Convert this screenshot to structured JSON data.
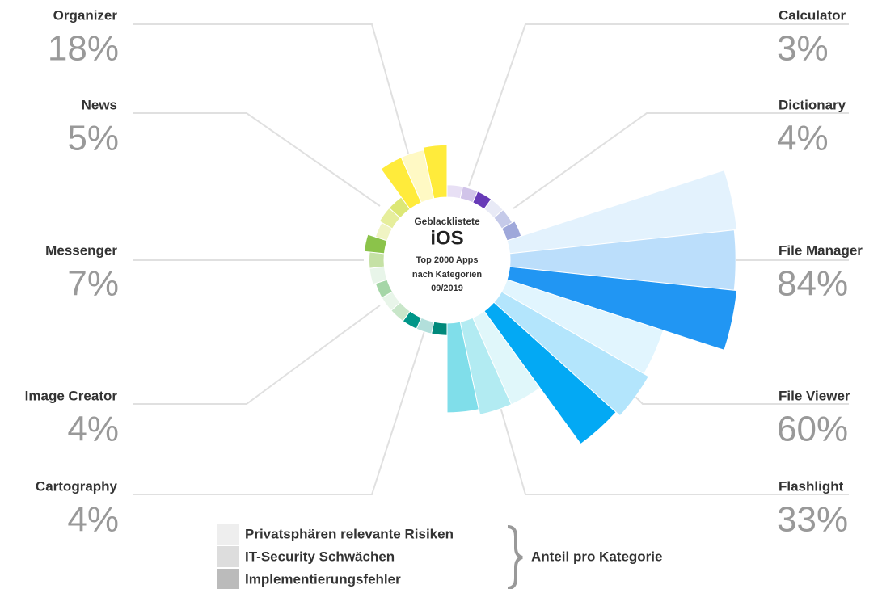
{
  "chart_data": {
    "type": "polar",
    "center_text": [
      "Geblacklistete",
      "iOS",
      "Top 2000 Apps",
      "nach Kategorien",
      "09/2019"
    ],
    "categories": [
      "Calculator",
      "Dictionary",
      "File Manager",
      "File Viewer",
      "Flashlight",
      "Cartography",
      "Image Creator",
      "Messenger",
      "News",
      "Organizer"
    ],
    "values": [
      3,
      4,
      84,
      60,
      33,
      4,
      4,
      7,
      5,
      18
    ],
    "value_labels": [
      "3%",
      "4%",
      "84%",
      "60%",
      "33%",
      "4%",
      "4%",
      "7%",
      "5%",
      "18%"
    ],
    "series": [
      {
        "name": "Privatsphären relevante Risiken",
        "color": "#eeeeee",
        "colors": [
          "#e8e0f5",
          "#e8eaf6",
          "#e3f2fd",
          "#e1f5fe",
          "#e0f7fa",
          "#00897b",
          "#c8e6c9",
          "#e8f5e9",
          "#f0f4c3",
          "#ffeb3b"
        ],
        "values": [
          4,
          4,
          85,
          61,
          35,
          4,
          4,
          5,
          4,
          18
        ]
      },
      {
        "name": "IT-Security Schwächen",
        "color": "#dddddd",
        "colors": [
          "#d1c4e9",
          "#c5cae9",
          "#bbdefb",
          "#b3e5fc",
          "#b2ebf2",
          "#b2dfdb",
          "#e8f5e9",
          "#c5e1a5",
          "#e6ee9c",
          "#fff9c4"
        ],
        "values": [
          4,
          4,
          84,
          63,
          35,
          4,
          4,
          5,
          5,
          18
        ]
      },
      {
        "name": "Implementierungsfehler",
        "color": "#bbbbbb",
        "colors": [
          "#673ab7",
          "#9fa8da",
          "#2196f3",
          "#03a9f4",
          "#80deea",
          "#009688",
          "#a5d6a7",
          "#8bc34a",
          "#dce775",
          "#ffeb3b"
        ],
        "values": [
          4,
          5,
          85,
          61,
          33,
          4,
          4,
          7,
          5,
          19
        ]
      }
    ],
    "legend_title": "Anteil pro Kategorie"
  }
}
